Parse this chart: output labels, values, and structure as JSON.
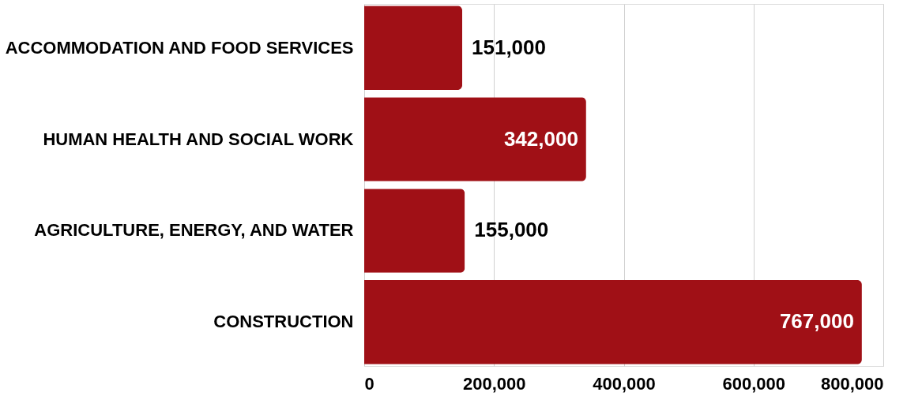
{
  "chart_data": {
    "type": "bar",
    "orientation": "horizontal",
    "categories": [
      "ACCOMMODATION AND FOOD SERVICES",
      "HUMAN HEALTH AND SOCIAL WORK",
      "AGRICULTURE, ENERGY, AND WATER",
      "CONSTRUCTION"
    ],
    "values": [
      151000,
      342000,
      155000,
      767000
    ],
    "color": "#a01016",
    "xlim": [
      0,
      800000
    ],
    "xticks": [
      0,
      {
        "value": 200000,
        "label": "200,000"
      },
      {
        "value": 400000,
        "label": "400,000"
      },
      {
        "value": 600000,
        "label": "600,000"
      },
      {
        "value": 800000,
        "label": "800,000"
      }
    ],
    "grid": "x",
    "value_labels": [
      "151,000",
      "342,000",
      "155,000",
      "767,000"
    ]
  }
}
